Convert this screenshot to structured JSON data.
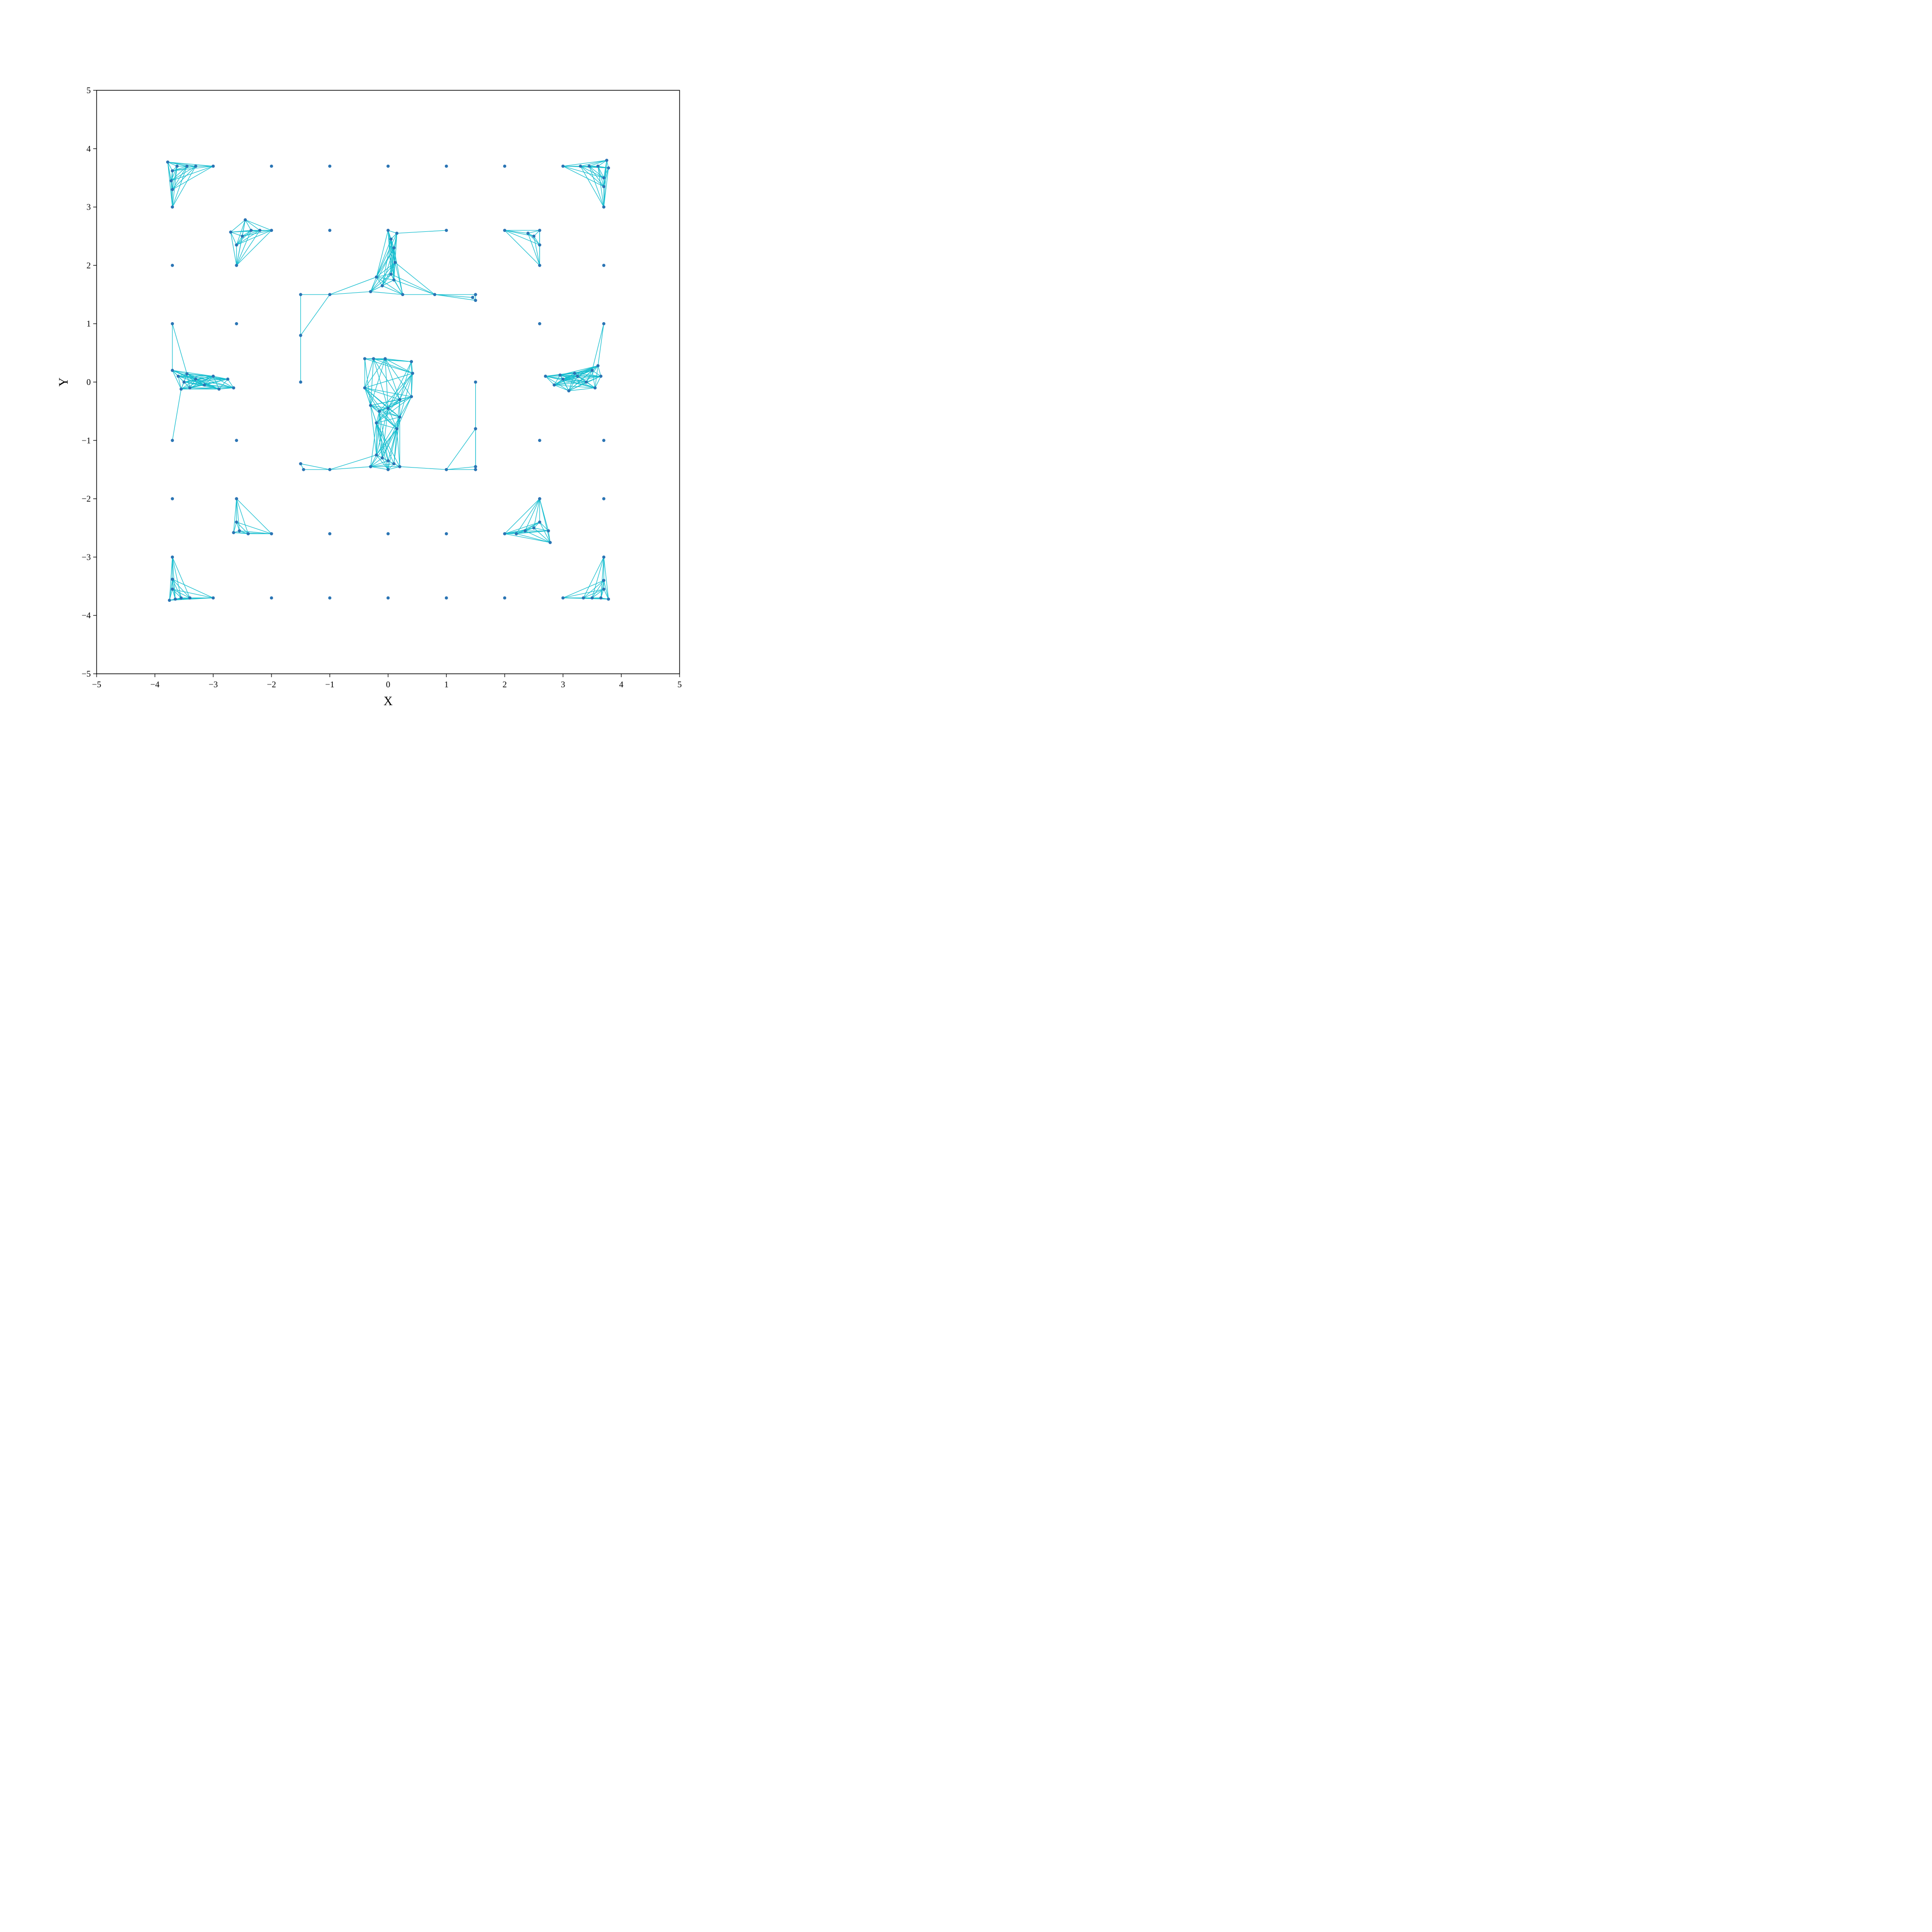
{
  "chart_data": {
    "type": "scatter",
    "title": "",
    "xlabel": "X",
    "ylabel": "Y",
    "xlim": [
      -5,
      5
    ],
    "ylim": [
      -5,
      5
    ],
    "xticks": [
      "−5",
      "−4",
      "−3",
      "−2",
      "−1",
      "0",
      "1",
      "2",
      "3",
      "4",
      "5"
    ],
    "yticks": [
      "−5",
      "−4",
      "−3",
      "−2",
      "−1",
      "0",
      "1",
      "2",
      "3",
      "4",
      "5"
    ],
    "grid": false,
    "legend": "none",
    "colors": {
      "point": "#2a74b4",
      "edge": "#17becf",
      "axis": "#000000"
    },
    "series": [
      {
        "values": [
          [
            -3.78,
            3.77
          ],
          [
            -3.7,
            3.62
          ],
          [
            -3.62,
            3.7
          ],
          [
            -3.45,
            3.7
          ],
          [
            -3.3,
            3.7
          ],
          [
            -3.72,
            3.45
          ],
          [
            -3.7,
            3.3
          ],
          [
            3.75,
            3.8
          ],
          [
            3.78,
            3.67
          ],
          [
            3.6,
            3.7
          ],
          [
            3.45,
            3.7
          ],
          [
            3.3,
            3.7
          ],
          [
            3.7,
            3.5
          ],
          [
            3.7,
            3.35
          ],
          [
            -3.75,
            -3.74
          ],
          [
            -3.65,
            -3.72
          ],
          [
            -3.55,
            -3.7
          ],
          [
            -3.4,
            -3.7
          ],
          [
            -3.7,
            -3.55
          ],
          [
            -3.7,
            -3.38
          ],
          [
            3.78,
            -3.72
          ],
          [
            3.65,
            -3.7
          ],
          [
            3.5,
            -3.7
          ],
          [
            3.35,
            -3.7
          ],
          [
            3.7,
            -3.55
          ],
          [
            3.7,
            -3.4
          ],
          [
            -3.7,
            0.2
          ],
          [
            -3.6,
            0.1
          ],
          [
            -3.5,
            0.0
          ],
          [
            -3.4,
            -0.1
          ],
          [
            -3.3,
            0.05
          ],
          [
            -3.15,
            -0.05
          ],
          [
            -3.0,
            0.1
          ],
          [
            -2.9,
            -0.12
          ],
          [
            -2.75,
            0.05
          ],
          [
            -2.65,
            -0.1
          ],
          [
            -3.55,
            -0.12
          ],
          [
            -3.45,
            0.14
          ],
          [
            2.7,
            0.1
          ],
          [
            2.85,
            -0.05
          ],
          [
            3.0,
            0.05
          ],
          [
            3.1,
            -0.15
          ],
          [
            3.25,
            0.1
          ],
          [
            3.4,
            0.0
          ],
          [
            3.55,
            -0.1
          ],
          [
            3.65,
            0.1
          ],
          [
            3.5,
            0.2
          ],
          [
            3.2,
            0.15
          ],
          [
            2.95,
            0.12
          ],
          [
            3.6,
            0.28
          ],
          [
            -2.45,
            2.78
          ],
          [
            -2.7,
            2.57
          ],
          [
            -2.5,
            2.5
          ],
          [
            -2.35,
            2.6
          ],
          [
            -2.2,
            2.6
          ],
          [
            -2.6,
            2.35
          ],
          [
            2.6,
            2.6
          ],
          [
            2.5,
            2.5
          ],
          [
            2.4,
            2.55
          ],
          [
            2.6,
            2.35
          ],
          [
            -2.65,
            -2.58
          ],
          [
            -2.55,
            -2.55
          ],
          [
            -2.4,
            -2.6
          ],
          [
            -2.6,
            -2.4
          ],
          [
            2.78,
            -2.75
          ],
          [
            2.75,
            -2.55
          ],
          [
            2.5,
            -2.5
          ],
          [
            2.35,
            -2.55
          ],
          [
            2.6,
            -2.4
          ],
          [
            2.2,
            -2.6
          ],
          [
            0.0,
            2.6
          ],
          [
            0.15,
            2.55
          ],
          [
            0.05,
            2.45
          ],
          [
            0.1,
            2.3
          ],
          [
            0.12,
            2.05
          ],
          [
            -0.2,
            1.8
          ],
          [
            -0.1,
            1.65
          ],
          [
            0.05,
            1.85
          ],
          [
            0.1,
            1.75
          ],
          [
            -0.3,
            1.55
          ],
          [
            0.25,
            1.5
          ],
          [
            -0.4,
            0.4
          ],
          [
            -0.25,
            0.4
          ],
          [
            -0.05,
            0.4
          ],
          [
            0.4,
            0.35
          ],
          [
            0.42,
            0.15
          ],
          [
            -0.4,
            -0.1
          ],
          [
            0.4,
            -0.25
          ],
          [
            0.2,
            -0.3
          ],
          [
            0.0,
            -0.45
          ],
          [
            -0.15,
            -0.5
          ],
          [
            -0.2,
            -0.7
          ],
          [
            0.15,
            -0.8
          ],
          [
            0.2,
            -0.6
          ],
          [
            -0.3,
            -0.4
          ],
          [
            -0.2,
            -1.25
          ],
          [
            -0.1,
            -1.3
          ],
          [
            0.0,
            -1.35
          ],
          [
            0.1,
            -1.4
          ],
          [
            0.2,
            -1.45
          ],
          [
            -0.3,
            -1.45
          ],
          [
            0.0,
            -1.5
          ],
          [
            -1.5,
            1.5
          ],
          [
            1.5,
            1.5
          ],
          [
            1.45,
            1.45
          ],
          [
            1.5,
            1.4
          ],
          [
            -1.5,
            -1.4
          ],
          [
            -1.45,
            -1.5
          ],
          [
            1.5,
            -1.5
          ],
          [
            1.5,
            -1.45
          ],
          [
            -1.0,
            1.5
          ],
          [
            0.8,
            1.5
          ],
          [
            -1.5,
            0.0
          ],
          [
            1.5,
            0.0
          ],
          [
            -1.0,
            -1.5
          ],
          [
            1.0,
            -1.5
          ],
          [
            -1.5,
            0.8
          ],
          [
            1.5,
            -0.8
          ],
          [
            -3.7,
            3.0
          ],
          [
            -3.7,
            2.0
          ],
          [
            -3.7,
            1.0
          ],
          [
            -3.7,
            -1.0
          ],
          [
            -3.7,
            -2.0
          ],
          [
            -3.7,
            -3.0
          ],
          [
            3.7,
            3.0
          ],
          [
            3.7,
            2.0
          ],
          [
            3.7,
            1.0
          ],
          [
            3.7,
            -1.0
          ],
          [
            3.7,
            -2.0
          ],
          [
            3.7,
            -3.0
          ],
          [
            -3.0,
            3.7
          ],
          [
            -2.0,
            3.7
          ],
          [
            -1.0,
            3.7
          ],
          [
            0.0,
            3.7
          ],
          [
            1.0,
            3.7
          ],
          [
            2.0,
            3.7
          ],
          [
            3.0,
            3.7
          ],
          [
            -3.0,
            -3.7
          ],
          [
            -2.0,
            -3.7
          ],
          [
            -1.0,
            -3.7
          ],
          [
            0.0,
            -3.7
          ],
          [
            1.0,
            -3.7
          ],
          [
            2.0,
            -3.7
          ],
          [
            3.0,
            -3.7
          ],
          [
            -2.6,
            2.0
          ],
          [
            -2.6,
            1.0
          ],
          [
            -2.6,
            -1.0
          ],
          [
            -2.6,
            -2.0
          ],
          [
            2.6,
            2.0
          ],
          [
            2.6,
            1.0
          ],
          [
            2.6,
            -1.0
          ],
          [
            2.6,
            -2.0
          ],
          [
            -2.0,
            2.6
          ],
          [
            -1.0,
            2.6
          ],
          [
            1.0,
            2.6
          ],
          [
            2.0,
            2.6
          ],
          [
            -2.0,
            -2.6
          ],
          [
            -1.0,
            -2.6
          ],
          [
            0.0,
            -2.6
          ],
          [
            1.0,
            -2.6
          ],
          [
            2.0,
            -2.6
          ]
        ]
      }
    ]
  }
}
